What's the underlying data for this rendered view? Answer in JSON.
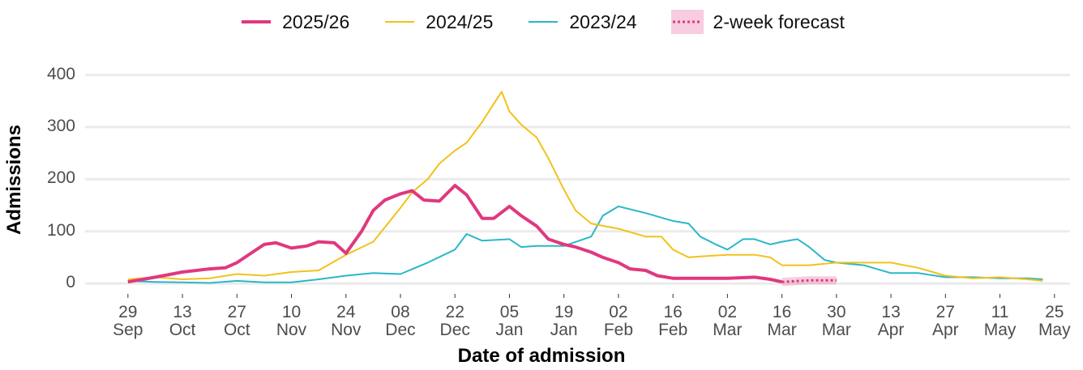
{
  "chart_data": {
    "type": "line",
    "x_label": "Date of admission",
    "y_label": "Admissions",
    "xlim": [
      "18 Sep",
      "29 May"
    ],
    "xticks": [
      "29 Sep",
      "13 Oct",
      "27 Oct",
      "10 Nov",
      "24 Nov",
      "08 Dec",
      "22 Dec",
      "05 Jan",
      "19 Jan",
      "02 Feb",
      "16 Feb",
      "02 Mar",
      "16 Mar",
      "30 Mar",
      "13 Apr",
      "27 Apr",
      "11 May",
      "25 May"
    ],
    "ylim": [
      -20,
      415
    ],
    "yticks": [
      0,
      100,
      200,
      300,
      400
    ],
    "grid": true,
    "legend": "top",
    "series": [
      {
        "name": "2025/26",
        "color": "#e0387f",
        "width": 4,
        "x": [
          "29 Sep",
          "6 Oct",
          "13 Oct",
          "20 Oct",
          "24 Oct",
          "27 Oct",
          "31 Oct",
          "3 Nov",
          "6 Nov",
          "10 Nov",
          "14 Nov",
          "17 Nov",
          "21 Nov",
          "24 Nov",
          "28 Nov",
          "1 Dec",
          "4 Dec",
          "8 Dec",
          "11 Dec",
          "14 Dec",
          "18 Dec",
          "22 Dec",
          "25 Dec",
          "29 Dec",
          "1 Jan",
          "5 Jan",
          "8 Jan",
          "12 Jan",
          "15 Jan",
          "19 Jan",
          "22 Jan",
          "26 Jan",
          "29 Jan",
          "2 Feb",
          "5 Feb",
          "9 Feb",
          "12 Feb",
          "16 Feb",
          "23 Feb",
          "2 Mar",
          "9 Mar",
          "13 Mar",
          "16 Mar"
        ],
        "values": [
          3,
          12,
          22,
          28,
          30,
          40,
          60,
          75,
          78,
          68,
          72,
          80,
          78,
          58,
          100,
          140,
          160,
          172,
          178,
          160,
          158,
          188,
          170,
          125,
          125,
          148,
          130,
          110,
          85,
          75,
          70,
          60,
          50,
          40,
          28,
          25,
          15,
          10,
          10,
          10,
          12,
          8,
          3
        ]
      },
      {
        "name": "2024/25",
        "color": "#f2c21b",
        "width": 2,
        "x": [
          "29 Sep",
          "6 Oct",
          "13 Oct",
          "20 Oct",
          "27 Oct",
          "3 Nov",
          "10 Nov",
          "17 Nov",
          "24 Nov",
          "1 Dec",
          "8 Dec",
          "11 Dec",
          "15 Dec",
          "18 Dec",
          "22 Dec",
          "25 Dec",
          "29 Dec",
          "1 Jan",
          "3 Jan",
          "5 Jan",
          "8 Jan",
          "12 Jan",
          "15 Jan",
          "19 Jan",
          "22 Jan",
          "26 Jan",
          "2 Feb",
          "9 Feb",
          "13 Feb",
          "16 Feb",
          "20 Feb",
          "23 Feb",
          "2 Mar",
          "9 Mar",
          "13 Mar",
          "16 Mar",
          "23 Mar",
          "30 Mar",
          "6 Apr",
          "13 Apr",
          "20 Apr",
          "27 Apr",
          "4 May",
          "11 May",
          "18 May",
          "22 May"
        ],
        "values": [
          8,
          12,
          8,
          10,
          18,
          15,
          22,
          25,
          55,
          80,
          145,
          175,
          200,
          230,
          255,
          270,
          310,
          345,
          368,
          330,
          305,
          280,
          240,
          180,
          140,
          115,
          105,
          90,
          90,
          65,
          50,
          52,
          55,
          55,
          50,
          35,
          35,
          40,
          40,
          40,
          30,
          15,
          10,
          12,
          8,
          5
        ]
      },
      {
        "name": "2023/24",
        "color": "#2ab7c9",
        "width": 2,
        "x": [
          "29 Sep",
          "6 Oct",
          "13 Oct",
          "20 Oct",
          "27 Oct",
          "3 Nov",
          "10 Nov",
          "17 Nov",
          "24 Nov",
          "1 Dec",
          "8 Dec",
          "15 Dec",
          "22 Dec",
          "25 Dec",
          "29 Dec",
          "5 Jan",
          "8 Jan",
          "12 Jan",
          "19 Jan",
          "26 Jan",
          "29 Jan",
          "2 Feb",
          "9 Feb",
          "16 Feb",
          "20 Feb",
          "23 Feb",
          "27 Feb",
          "2 Mar",
          "6 Mar",
          "9 Mar",
          "13 Mar",
          "16 Mar",
          "20 Mar",
          "23 Mar",
          "27 Mar",
          "30 Mar",
          "6 Apr",
          "13 Apr",
          "20 Apr",
          "27 Apr",
          "4 May",
          "11 May",
          "18 May",
          "22 May"
        ],
        "values": [
          5,
          3,
          2,
          1,
          5,
          2,
          2,
          8,
          15,
          20,
          18,
          40,
          65,
          95,
          82,
          85,
          70,
          72,
          72,
          90,
          130,
          148,
          135,
          120,
          115,
          90,
          75,
          65,
          85,
          85,
          75,
          80,
          85,
          70,
          45,
          40,
          35,
          20,
          20,
          12,
          12,
          10,
          10,
          8
        ]
      },
      {
        "name": "2-week forecast",
        "color": "#e0387f",
        "width": 3,
        "dash": true,
        "x": [
          "16 Mar",
          "23 Mar",
          "30 Mar"
        ],
        "values": [
          3,
          6,
          6
        ]
      }
    ]
  }
}
